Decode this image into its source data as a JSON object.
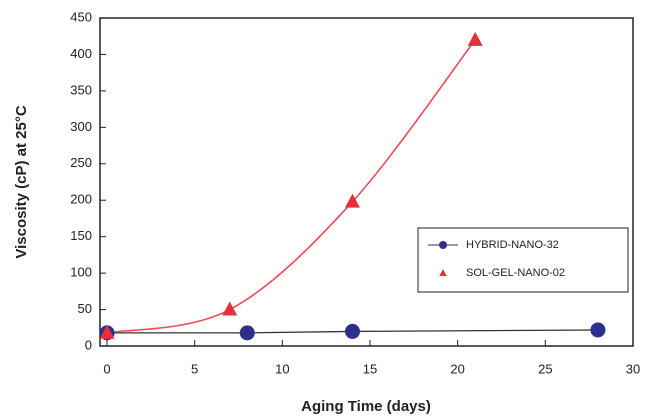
{
  "chart_data": {
    "type": "line",
    "x_label": "Aging Time (days)",
    "y_label": "Viscosity (cP) at 25°C",
    "xlim": [
      -0.4,
      30
    ],
    "xticks": [
      0,
      5,
      10,
      15,
      20,
      25,
      30
    ],
    "ylim": [
      0,
      450
    ],
    "yticks": [
      0,
      50,
      100,
      150,
      200,
      250,
      300,
      350,
      400,
      450
    ],
    "grid": false,
    "legend": "lower right",
    "series": [
      {
        "name": "HYBRID-NANO-32",
        "color": "#2e2f8c",
        "line_color": "#333333",
        "marker": "circle",
        "smooth": false,
        "x": [
          0,
          8,
          14,
          28
        ],
        "values": [
          18,
          18,
          20,
          22
        ]
      },
      {
        "name": "SOL-GEL-NANO-02",
        "color": "#e8303a",
        "line_color": "#f04a55",
        "marker": "triangle",
        "smooth": true,
        "x": [
          0,
          7,
          14,
          21
        ],
        "values": [
          18,
          50,
          198,
          420
        ]
      }
    ]
  }
}
